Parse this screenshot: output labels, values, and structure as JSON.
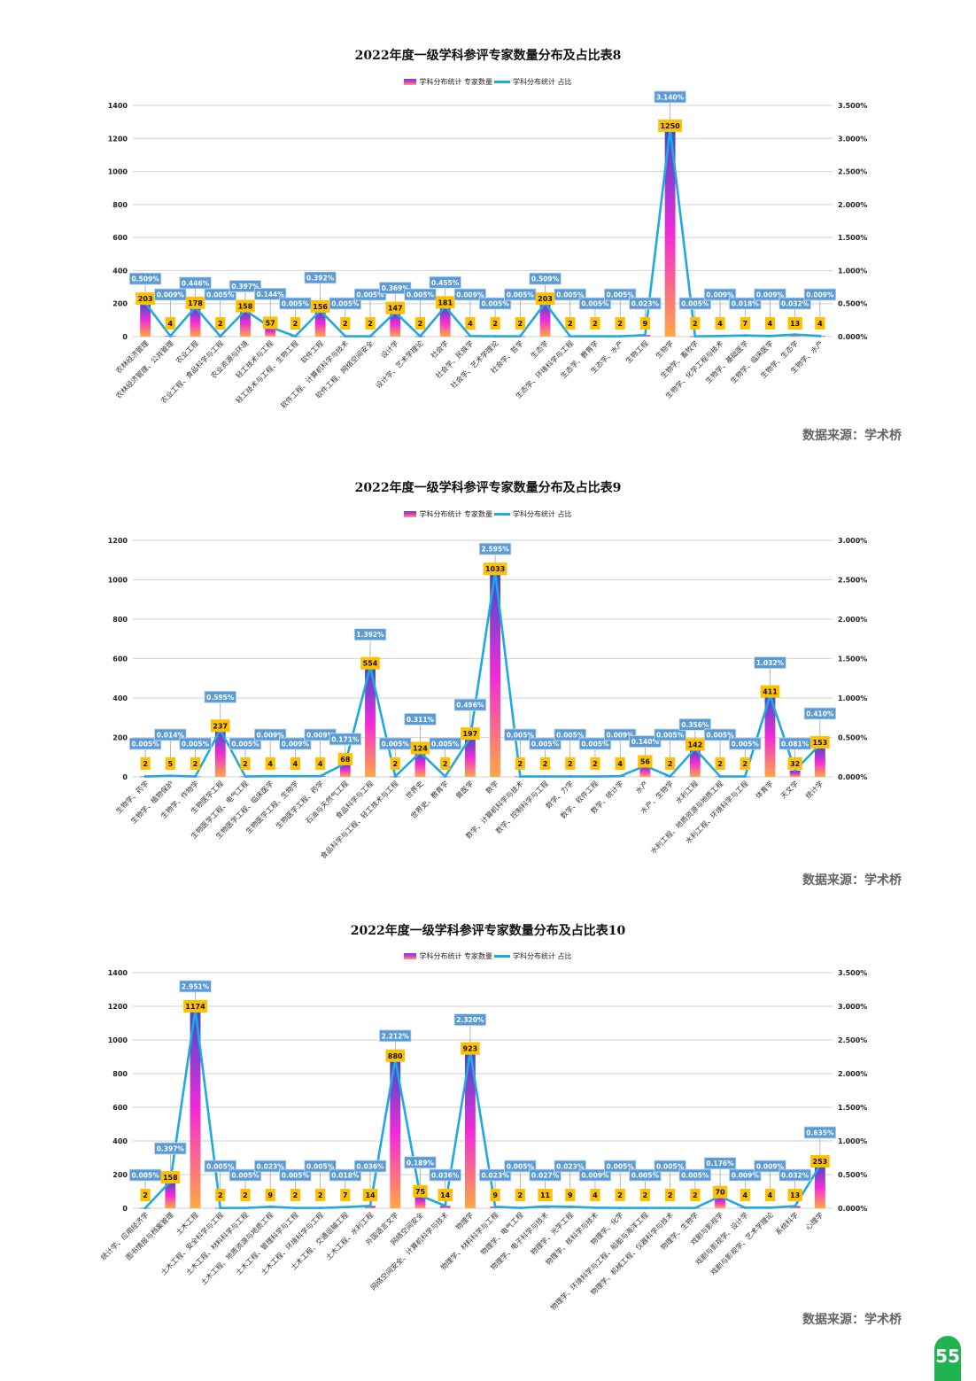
{
  "page": {
    "number": "55",
    "source_label": "数据来源：学术桥"
  },
  "legend": {
    "bar_label": "学科分布统计 专家数量",
    "line_label": "学科分布统计 占比"
  },
  "colors": {
    "bar_top": "#3b4fc8",
    "bar_mid": "#f22ad8",
    "bar_bottom": "#ffa843",
    "line": "#1ea9e1",
    "value_label_bg": "#ffc000",
    "pct_label_bg": "#5b9bd5",
    "grid": "#d9d9d9"
  },
  "chart_data": [
    {
      "type": "bar",
      "title": "2022年度一级学科参评专家数量分布及占比表8",
      "xlabel": "",
      "ylabel": "",
      "ylim": [
        0,
        1400
      ],
      "yticks": [
        0,
        200,
        400,
        600,
        800,
        1000,
        1200,
        1400
      ],
      "y2lim": [
        0,
        3.5
      ],
      "y2ticks": [
        "0.000%",
        "0.500%",
        "1.000%",
        "1.500%",
        "2.000%",
        "2.500%",
        "3.000%",
        "3.500%"
      ],
      "grid": true,
      "legend_position": "top",
      "categories": [
        "农林经济管理",
        "农林经济管理、公共管理",
        "农业工程",
        "农业工程、食品科学与工程",
        "农业资源与环境",
        "轻工技术与工程",
        "轻工技术与工程、生物工程",
        "软件工程",
        "软件工程、计算机科学与技术",
        "软件工程、网络空间安全",
        "设计学",
        "设计学、艺术学理论",
        "社会学",
        "社会学、民族学",
        "社会学、艺术学理论",
        "社会学、哲学",
        "生态学",
        "生态学、环境科学与工程",
        "生态学、教育学",
        "生态学、水产",
        "生物工程",
        "生物学",
        "生物学、畜牧学",
        "生物学、化学工程与技术",
        "生物学、基础医学",
        "生物学、临床医学",
        "生物学、生态学",
        "生物学、水产"
      ],
      "series": [
        {
          "name": "学科分布统计 专家数量",
          "kind": "bar",
          "values": [
            203,
            4,
            178,
            2,
            158,
            57,
            2,
            156,
            2,
            2,
            147,
            2,
            181,
            4,
            2,
            2,
            203,
            2,
            2,
            2,
            9,
            1250,
            2,
            4,
            7,
            4,
            13,
            4
          ]
        },
        {
          "name": "学科分布统计 占比",
          "kind": "line",
          "axis": "right",
          "values": [
            0.509,
            0.009,
            0.446,
            0.005,
            0.397,
            0.144,
            0.005,
            0.392,
            0.005,
            0.005,
            0.369,
            0.005,
            0.455,
            0.009,
            0.005,
            0.005,
            0.509,
            0.005,
            0.005,
            0.005,
            0.023,
            3.14,
            0.005,
            0.009,
            0.018,
            0.009,
            0.032,
            0.009
          ],
          "labels": [
            "0.509%",
            "0.009%",
            "0.446%",
            "0.005%",
            "0.397%",
            "0.144%",
            "0.005%",
            "0.392%",
            "0.005%",
            "0.005%",
            "0.369%",
            "0.005%",
            "0.455%",
            "0.009%",
            "0.005%",
            "0.005%",
            "0.509%",
            "0.005%",
            "0.005%",
            "0.005%",
            "0.023%",
            "3.140%",
            "0.005%",
            "0.009%",
            "0.018%",
            "0.009%",
            "0.032%",
            "0.009%"
          ]
        }
      ]
    },
    {
      "type": "bar",
      "title": "2022年度一级学科参评专家数量分布及占比表9",
      "xlabel": "",
      "ylabel": "",
      "ylim": [
        0,
        1200
      ],
      "yticks": [
        0,
        200,
        400,
        600,
        800,
        1000,
        1200
      ],
      "y2lim": [
        0,
        3.0
      ],
      "y2ticks": [
        "0.000%",
        "0.500%",
        "1.000%",
        "1.500%",
        "2.000%",
        "2.500%",
        "3.000%"
      ],
      "grid": true,
      "legend_position": "top",
      "categories": [
        "生物学、药学",
        "生物学、植物保护",
        "生物学、作物学",
        "生物医学工程",
        "生物医学工程、电气工程",
        "生物医学工程、临床医学",
        "生物医学工程、生物学",
        "生物医学工程、药学",
        "石油与天然气工程",
        "食品科学与工程",
        "食品科学与工程、轻工技术与工程",
        "世界史",
        "世界史、教育学",
        "兽医学",
        "数学",
        "数学、计算机科学与技术",
        "数学、控制科学与工程",
        "数学、力学",
        "数学、软件工程",
        "数学、统计学",
        "水产",
        "水产、生物学",
        "水利工程",
        "水利工程、地质资源与地质工程",
        "水利工程、环境科学与工程",
        "体育学",
        "天文学",
        "统计学"
      ],
      "series": [
        {
          "name": "学科分布统计 专家数量",
          "kind": "bar",
          "values": [
            2,
            5,
            2,
            237,
            2,
            4,
            4,
            4,
            68,
            554,
            2,
            124,
            2,
            197,
            1033,
            2,
            2,
            2,
            2,
            4,
            56,
            2,
            142,
            2,
            2,
            411,
            32,
            153
          ]
        },
        {
          "name": "学科分布统计 占比",
          "kind": "line",
          "axis": "right",
          "values": [
            0.005,
            0.014,
            0.005,
            0.595,
            0.005,
            0.009,
            0.009,
            0.009,
            0.171,
            1.392,
            0.005,
            0.311,
            0.005,
            0.496,
            2.595,
            0.005,
            0.005,
            0.005,
            0.005,
            0.009,
            0.14,
            0.005,
            0.356,
            0.005,
            0.005,
            1.032,
            0.081,
            0.41
          ],
          "labels": [
            "0.005%",
            "0.014%",
            "0.005%",
            "0.595%",
            "0.005%",
            "0.009%",
            "0.009%",
            "0.009%",
            "0.171%",
            "1.392%",
            "0.005%",
            "0.311%",
            "0.005%",
            "0.496%",
            "2.595%",
            "0.005%",
            "0.005%",
            "0.005%",
            "0.005%",
            "0.009%",
            "0.140%",
            "0.005%",
            "0.356%",
            "0.005%",
            "0.005%",
            "1.032%",
            "0.081%",
            "0.410%"
          ]
        }
      ]
    },
    {
      "type": "bar",
      "title": "2022年度一级学科参评专家数量分布及占比表10",
      "xlabel": "",
      "ylabel": "",
      "ylim": [
        0,
        1400
      ],
      "yticks": [
        0,
        200,
        400,
        600,
        800,
        1000,
        1200,
        1400
      ],
      "y2lim": [
        0,
        3.5
      ],
      "y2ticks": [
        "0.000%",
        "0.500%",
        "1.000%",
        "1.500%",
        "2.000%",
        "2.500%",
        "3.000%",
        "3.500%"
      ],
      "grid": true,
      "legend_position": "top",
      "categories": [
        "统计学、应用经济学",
        "图书情报与档案管理",
        "土木工程",
        "土木工程、安全科学与工程",
        "土木工程、材料科学与工程",
        "土木工程、地质资源与地质工程",
        "土木工程、管理科学与工程",
        "土木工程、环境科学与工程",
        "土木工程、交通运输工程",
        "土木工程、水利工程",
        "外国语言文学",
        "网络空间安全",
        "网络空间安全、计算机科学与技术",
        "物理学",
        "物理学、材料科学与工程",
        "物理学、电气工程",
        "物理学、电子科学与技术",
        "物理学、光学工程",
        "物理学、核科学与技术",
        "物理学、化学",
        "物理学、环境科学与工程、船舶与海洋工程",
        "物理学、机械工程、仪器科学与技术",
        "物理学、生物学",
        "戏剧与影视学",
        "戏剧与影视学、设计学",
        "戏剧与影视学、艺术学理论",
        "系统科学",
        "心理学"
      ],
      "series": [
        {
          "name": "学科分布统计 专家数量",
          "kind": "bar",
          "values": [
            2,
            158,
            1174,
            2,
            2,
            9,
            2,
            2,
            7,
            14,
            880,
            75,
            14,
            923,
            9,
            2,
            11,
            9,
            4,
            2,
            2,
            2,
            2,
            70,
            4,
            4,
            13,
            253
          ]
        },
        {
          "name": "学科分布统计 占比",
          "kind": "line",
          "axis": "right",
          "values": [
            0.005,
            0.397,
            2.951,
            0.005,
            0.005,
            0.023,
            0.005,
            0.005,
            0.018,
            0.036,
            2.212,
            0.189,
            0.036,
            2.32,
            0.023,
            0.005,
            0.027,
            0.023,
            0.009,
            0.005,
            0.005,
            0.005,
            0.005,
            0.176,
            0.009,
            0.009,
            0.032,
            0.635
          ],
          "labels": [
            "0.005%",
            "0.397%",
            "2.951%",
            "0.005%",
            "0.005%",
            "0.023%",
            "0.005%",
            "0.005%",
            "0.018%",
            "0.036%",
            "2.212%",
            "0.189%",
            "0.036%",
            "2.320%",
            "0.023%",
            "0.005%",
            "0.027%",
            "0.023%",
            "0.009%",
            "0.005%",
            "0.005%",
            "0.005%",
            "0.005%",
            "0.176%",
            "0.009%",
            "0.009%",
            "0.032%",
            "0.635%"
          ]
        }
      ]
    }
  ]
}
